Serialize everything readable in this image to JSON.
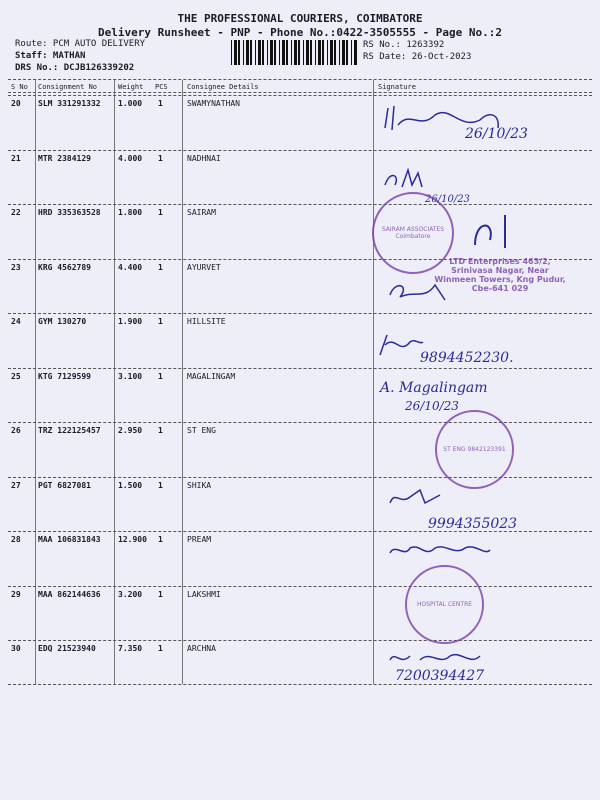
{
  "header": {
    "company": "THE PROFESSIONAL COURIERS, COIMBATORE",
    "subtitle": "Delivery Runsheet - PNP - Phone No.:0422-3505555 - Page No.:2",
    "route": "Route: PCM AUTO DELIVERY",
    "staff": "Staff: MATHAN",
    "drs": "DRS No.: DCJB126339202",
    "rs_no": "RS No.: 1263392",
    "rs_date": "RS Date: 26-Oct-2023"
  },
  "columns": [
    "S No",
    "Consignment No",
    "Weight",
    "PCS",
    "Consignee Details",
    "Signature"
  ],
  "rows": [
    {
      "sno": "20",
      "consignment": "SLM 331291332",
      "weight": "1.000",
      "pcs": "1",
      "consignee": "SWAMYNATHAN"
    },
    {
      "sno": "21",
      "consignment": "MTR 2384129",
      "weight": "4.000",
      "pcs": "1",
      "consignee": "NADHNAI"
    },
    {
      "sno": "22",
      "consignment": "HRD 335363528",
      "weight": "1.800",
      "pcs": "1",
      "consignee": "SAIRAM"
    },
    {
      "sno": "23",
      "consignment": "KRG 4562789",
      "weight": "4.400",
      "pcs": "1",
      "consignee": "AYURVET"
    },
    {
      "sno": "24",
      "consignment": "GYM 130270",
      "weight": "1.900",
      "pcs": "1",
      "consignee": "HILLSITE"
    },
    {
      "sno": "25",
      "consignment": "KTG 7129599",
      "weight": "3.100",
      "pcs": "1",
      "consignee": "MAGALINGAM"
    },
    {
      "sno": "26",
      "consignment": "TRZ 122125457",
      "weight": "2.950",
      "pcs": "1",
      "consignee": "ST ENG"
    },
    {
      "sno": "27",
      "consignment": "PGT 6827081",
      "weight": "1.500",
      "pcs": "1",
      "consignee": "SHIKA"
    },
    {
      "sno": "28",
      "consignment": "MAA 106831843",
      "weight": "12.900",
      "pcs": "1",
      "consignee": "PREAM"
    },
    {
      "sno": "29",
      "consignment": "MAA 862144636",
      "weight": "3.200",
      "pcs": "1",
      "consignee": "LAKSHMI"
    },
    {
      "sno": "30",
      "consignment": "EDQ 21523940",
      "weight": "7.350",
      "pcs": "1",
      "consignee": "ARCHNA"
    }
  ],
  "handwriting": {
    "r20_date": "26/10/23",
    "r22_date": "26/10/23",
    "r24_phone": "9894452230.",
    "r25_name": "A. Magalingam",
    "r25_date": "26/10/23",
    "r27_phone": "9994355023",
    "r30_phone": "7200394427"
  },
  "stamps": {
    "sairam": "SAIRAM ASSOCIATES Coimbatore",
    "ayurvet": "LTD Enterprises 463/2, Srinivasa Nagar, Near Winmeen Towers, Kng Pudur, Cbe-641 029",
    "st_eng": "ST ENG 9842123391",
    "hospital": "HOSPITAL CENTRE"
  },
  "colors": {
    "ink": "#2a2a9a",
    "stamp": "#7a3fa8",
    "paper": "#eeeef8"
  }
}
